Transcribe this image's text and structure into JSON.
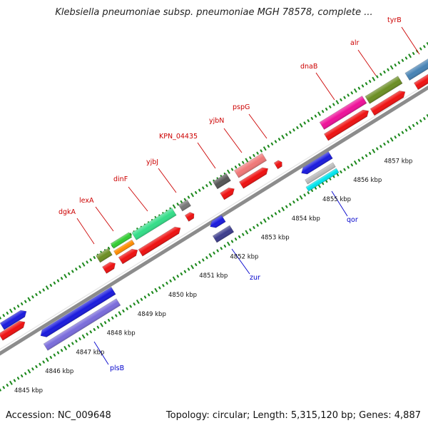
{
  "title": "Klebsiella pneumoniae subsp. pneumoniae MGH 78578, complete ...",
  "footer": {
    "accession": "Accession: NC_009648",
    "stats": "Topology: circular; Length: 5,315,120 bp; Genes: 4,887"
  },
  "colors": {
    "backbone": "#8c8c8c",
    "tick_dots": "#1f8a1f",
    "label_forward": "#cc0000",
    "label_reverse": "#0000cc",
    "leader": "#cc0000"
  },
  "scale_ticks": [
    {
      "label": "4845 kbp",
      "kbp": 4845
    },
    {
      "label": "4846 kbp",
      "kbp": 4846
    },
    {
      "label": "4847 kbp",
      "kbp": 4847
    },
    {
      "label": "4848 kbp",
      "kbp": 4848
    },
    {
      "label": "4849 kbp",
      "kbp": 4849
    },
    {
      "label": "4850 kbp",
      "kbp": 4850
    },
    {
      "label": "4851 kbp",
      "kbp": 4851
    },
    {
      "label": "4852 kbp",
      "kbp": 4852
    },
    {
      "label": "4853 kbp",
      "kbp": 4853
    },
    {
      "label": "4854 kbp",
      "kbp": 4854
    },
    {
      "label": "4855 kbp",
      "kbp": 4855
    },
    {
      "label": "4856 kbp",
      "kbp": 4856
    },
    {
      "label": "4857 kbp",
      "kbp": 4857
    }
  ],
  "gene_labels": [
    {
      "name": "dgkA",
      "strand": "forward"
    },
    {
      "name": "lexA",
      "strand": "forward"
    },
    {
      "name": "dinF",
      "strand": "forward"
    },
    {
      "name": "yjbJ",
      "strand": "forward"
    },
    {
      "name": "KPN_04435",
      "strand": "forward"
    },
    {
      "name": "yjbN",
      "strand": "forward"
    },
    {
      "name": "pspG",
      "strand": "forward"
    },
    {
      "name": "dnaB",
      "strand": "forward"
    },
    {
      "name": "alr",
      "strand": "forward"
    },
    {
      "name": "tyrB",
      "strand": "forward"
    },
    {
      "name": "plsB",
      "strand": "reverse"
    },
    {
      "name": "zur",
      "strand": "reverse"
    },
    {
      "name": "qor",
      "strand": "reverse"
    }
  ]
}
